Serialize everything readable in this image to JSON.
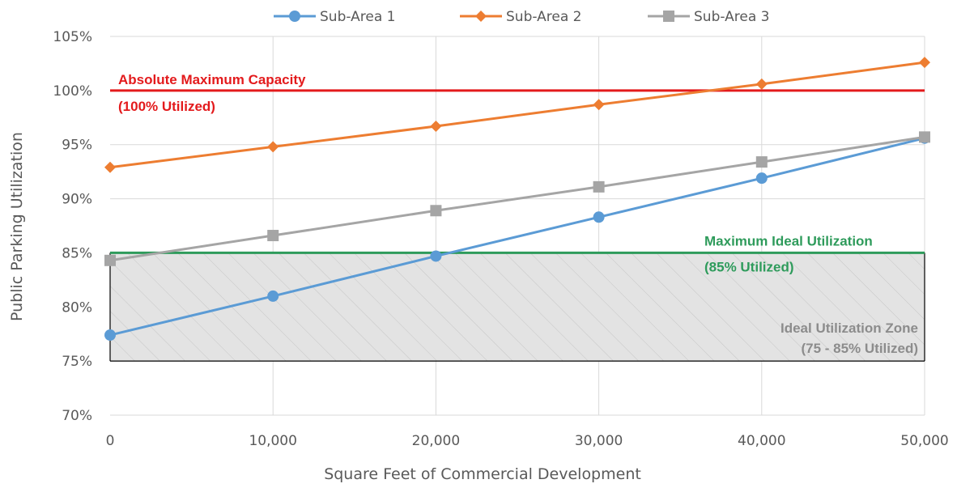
{
  "chart_data": {
    "type": "line",
    "xlabel": "Square Feet of Commercial Development",
    "ylabel": "Public Parking Utilization",
    "x": [
      0,
      10000,
      20000,
      30000,
      40000,
      50000
    ],
    "x_tick_labels": [
      "0",
      "10,000",
      "20,000",
      "30,000",
      "40,000",
      "50,000"
    ],
    "xlim": [
      0,
      50000
    ],
    "ylim": [
      70,
      105
    ],
    "y_ticks": [
      70,
      75,
      80,
      85,
      90,
      95,
      100,
      105
    ],
    "y_tick_labels": [
      "70%",
      "75%",
      "80%",
      "85%",
      "90%",
      "95%",
      "100%",
      "105%"
    ],
    "grid": true,
    "legend_position": "top",
    "series": [
      {
        "name": "Sub-Area 1",
        "values": [
          77.4,
          81.0,
          84.7,
          88.3,
          91.9,
          95.6
        ],
        "color": "#5b9bd5",
        "marker": "circle"
      },
      {
        "name": "Sub-Area 2",
        "values": [
          92.9,
          94.8,
          96.7,
          98.7,
          100.6,
          102.6
        ],
        "color": "#ed7d31",
        "marker": "diamond"
      },
      {
        "name": "Sub-Area 3",
        "values": [
          84.3,
          86.6,
          88.9,
          91.1,
          93.4,
          95.7
        ],
        "color": "#a5a5a5",
        "marker": "square"
      }
    ],
    "reference_lines": [
      {
        "value": 100,
        "color": "#e31a1c",
        "label_line1": "Absolute Maximum Capacity",
        "label_line2": "(100% Utilized)"
      },
      {
        "value": 85,
        "color": "#2e9b5b",
        "label_line1": "Maximum Ideal Utilization",
        "label_line2": "(85% Utilized)"
      }
    ],
    "zone": {
      "from": 75,
      "to": 85,
      "fill": "#e3e3e3",
      "label_line1": "Ideal Utilization Zone",
      "label_line2": "(75 - 85% Utilized)",
      "label_color": "#8c8c8c"
    }
  }
}
